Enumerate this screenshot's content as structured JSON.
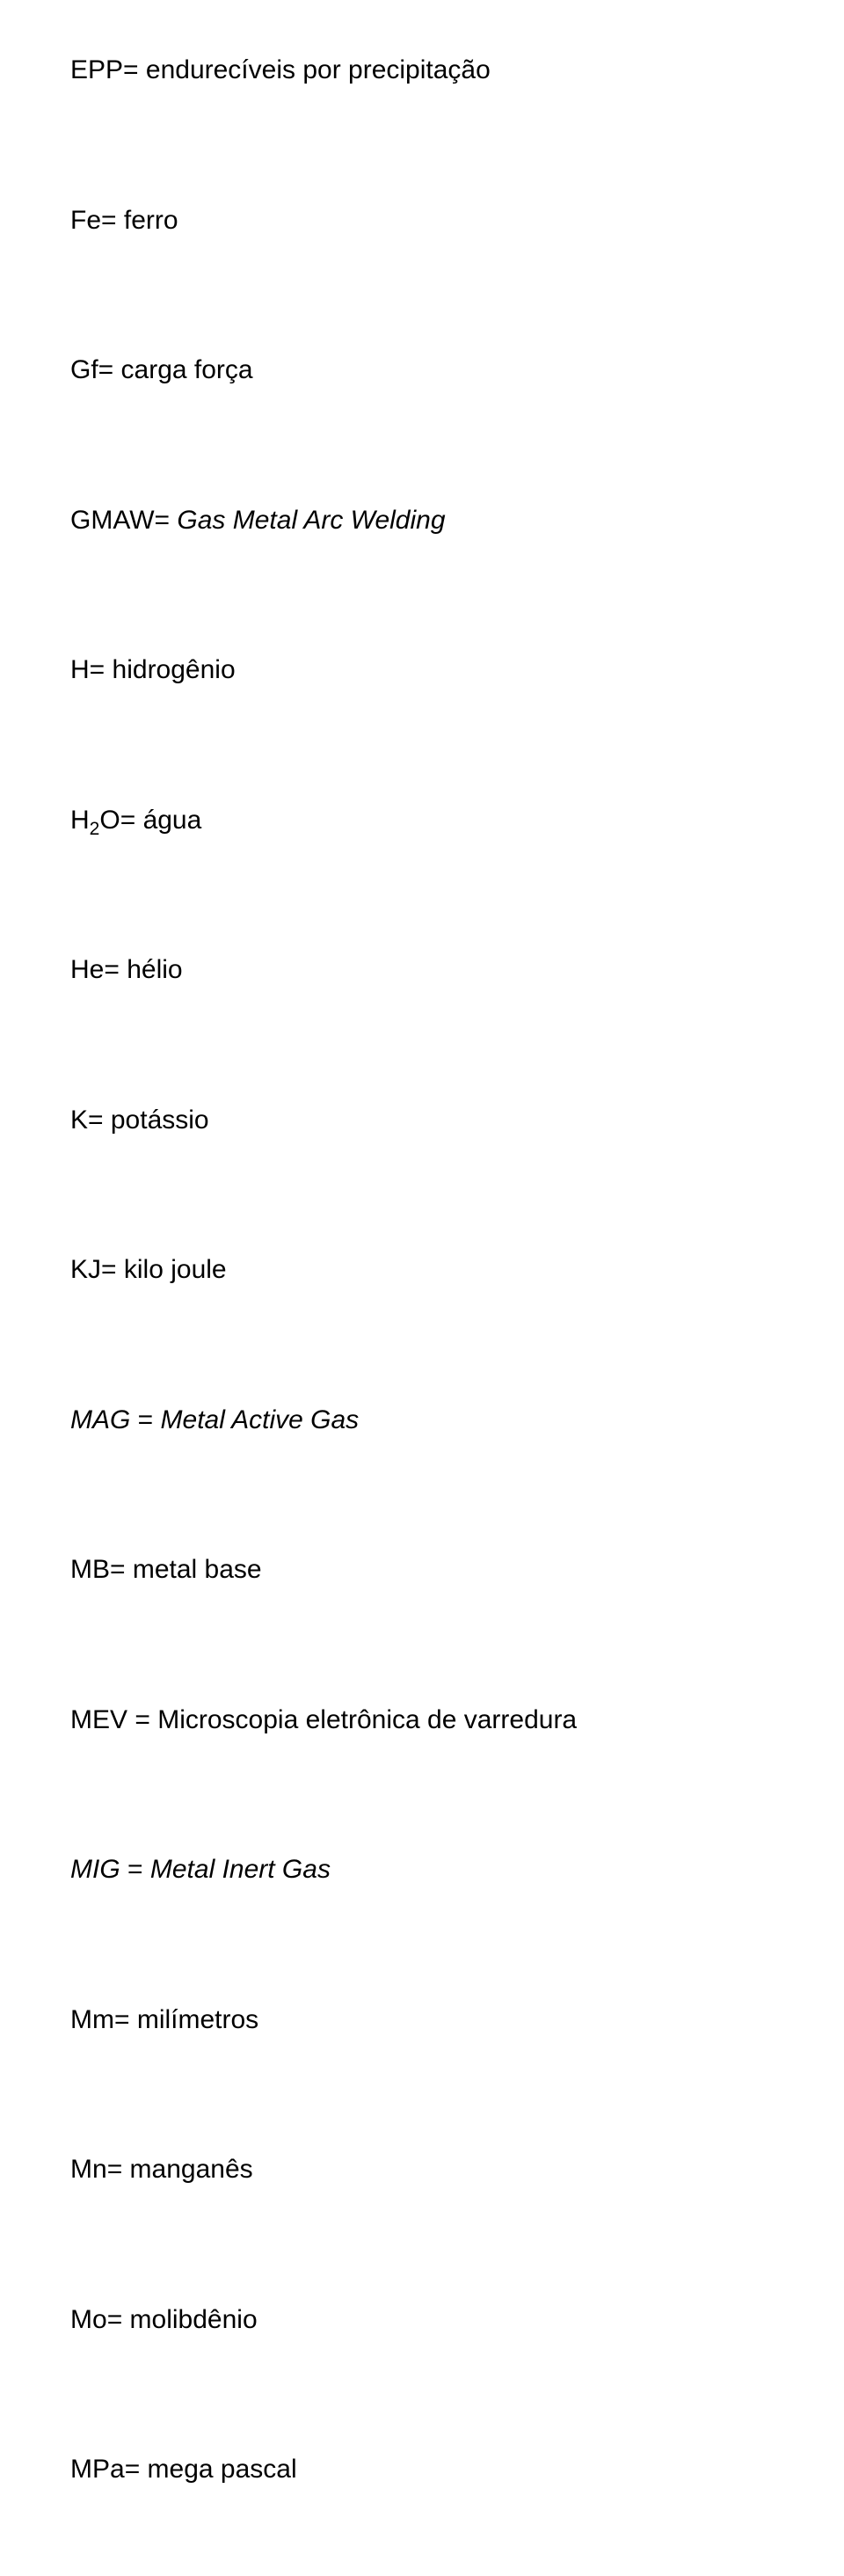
{
  "entries": [
    {
      "abbr": "EPP",
      "def": "endurecíveis por precipitação",
      "abbr_italic": false,
      "def_italic": false,
      "has_sub": false
    },
    {
      "abbr": "Fe",
      "def": "ferro",
      "abbr_italic": false,
      "def_italic": false,
      "has_sub": false
    },
    {
      "abbr": "Gf",
      "def": "carga força",
      "abbr_italic": false,
      "def_italic": false,
      "has_sub": false
    },
    {
      "abbr": "GMAW",
      "def": "Gas Metal Arc Welding",
      "abbr_italic": false,
      "def_italic": true,
      "has_sub": false
    },
    {
      "abbr": "H",
      "def": "hidrogênio",
      "abbr_italic": false,
      "def_italic": false,
      "has_sub": false
    },
    {
      "abbr_pre": "H",
      "abbr_sub": "2",
      "abbr_post": "O",
      "def": "água",
      "abbr_italic": false,
      "def_italic": false,
      "has_sub": true
    },
    {
      "abbr": "He",
      "def": "hélio",
      "abbr_italic": false,
      "def_italic": false,
      "has_sub": false
    },
    {
      "abbr": "K",
      "def": "potássio",
      "abbr_italic": false,
      "def_italic": false,
      "has_sub": false
    },
    {
      "abbr": "KJ",
      "def": "kilo joule",
      "abbr_italic": false,
      "def_italic": false,
      "has_sub": false
    },
    {
      "abbr": "MAG",
      "def": "Metal Active Gas",
      "abbr_italic": true,
      "def_italic": true,
      "has_sub": false
    },
    {
      "abbr": "MB",
      "def": "metal base",
      "abbr_italic": false,
      "def_italic": false,
      "has_sub": false
    },
    {
      "abbr": "MEV",
      "def": "Microscopia eletrônica de varredura",
      "abbr_italic": false,
      "def_italic": false,
      "has_sub": false
    },
    {
      "abbr": "MIG",
      "def": "Metal Inert Gas",
      "abbr_italic": true,
      "def_italic": true,
      "has_sub": false
    },
    {
      "abbr": "Mm",
      "def": "milímetros",
      "abbr_italic": false,
      "def_italic": false,
      "has_sub": false
    },
    {
      "abbr": "Mn",
      "def": "manganês",
      "abbr_italic": false,
      "def_italic": false,
      "has_sub": false
    },
    {
      "abbr": "Mo",
      "def": "molibdênio",
      "abbr_italic": false,
      "def_italic": false,
      "has_sub": false
    },
    {
      "abbr": "MPa",
      "def": "mega pascal",
      "abbr_italic": false,
      "def_italic": false,
      "has_sub": false
    }
  ],
  "separators": {
    "eq": "= ",
    "space_eq": " ="
  }
}
